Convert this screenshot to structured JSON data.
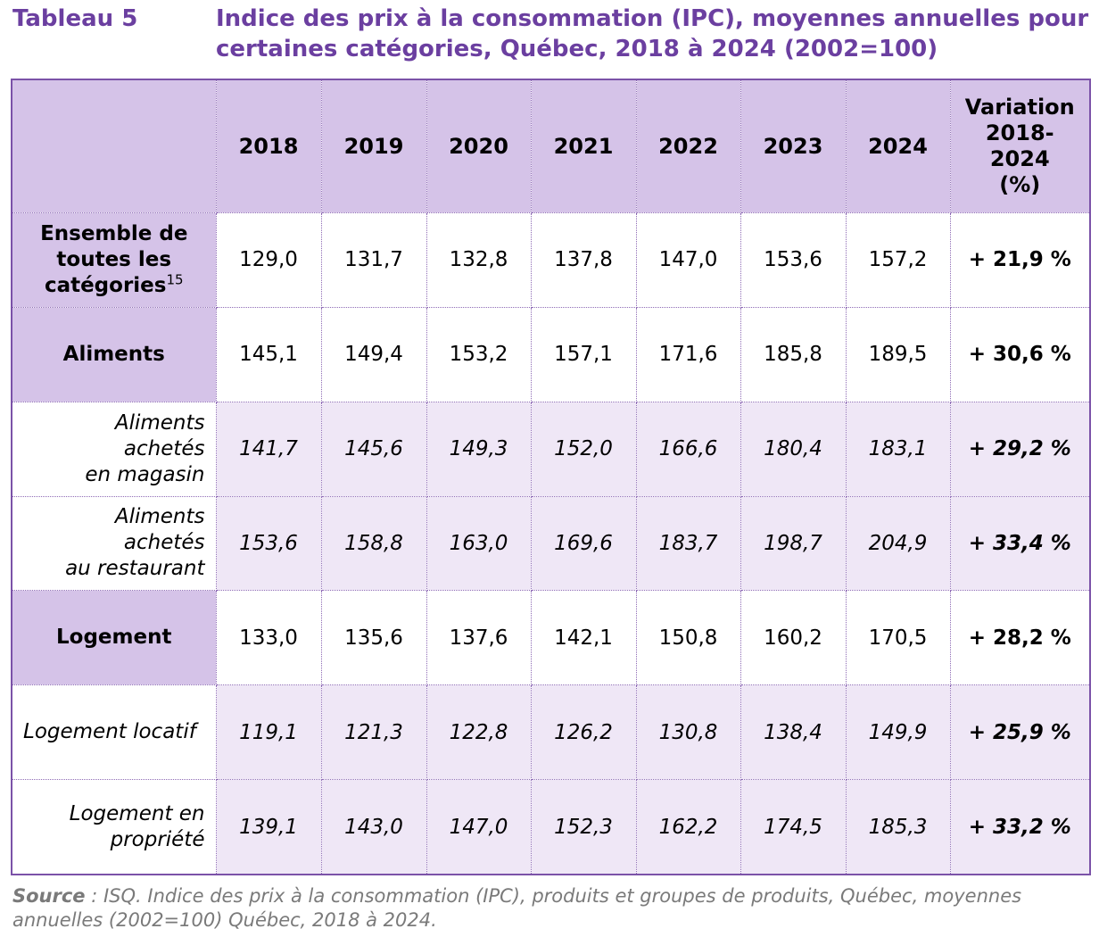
{
  "header": {
    "table_label": "Tableau 5",
    "title": "Indice des prix à la consommation (IPC), moyennes annuelles pour certaines catégories, Québec, 2018 à 2024 (2002=100)"
  },
  "table": {
    "columns": [
      "2018",
      "2019",
      "2020",
      "2021",
      "2022",
      "2023",
      "2024"
    ],
    "variation_header": [
      "Variation",
      "2018-",
      "2024",
      "(%)"
    ],
    "rows": [
      {
        "label_lines": [
          "Ensemble de",
          "toutes les",
          "catégories"
        ],
        "footnote": "15",
        "values": [
          "129,0",
          "131,7",
          "132,8",
          "137,8",
          "147,0",
          "153,6",
          "157,2"
        ],
        "variation": "+ 21,9 %"
      },
      {
        "label_lines": [
          "Aliments"
        ],
        "values": [
          "145,1",
          "149,4",
          "153,2",
          "157,1",
          "171,6",
          "185,8",
          "189,5"
        ],
        "variation": "+ 30,6 %"
      },
      {
        "label_lines": [
          "Aliments",
          "achetés",
          "en magasin"
        ],
        "values": [
          "141,7",
          "145,6",
          "149,3",
          "152,0",
          "166,6",
          "180,4",
          "183,1"
        ],
        "variation": "+ 29,2 %"
      },
      {
        "label_lines": [
          "Aliments",
          "achetés",
          "au restaurant"
        ],
        "values": [
          "153,6",
          "158,8",
          "163,0",
          "169,6",
          "183,7",
          "198,7",
          "204,9"
        ],
        "variation": "+ 33,4 %"
      },
      {
        "label_lines": [
          "Logement"
        ],
        "values": [
          "133,0",
          "135,6",
          "137,6",
          "142,1",
          "150,8",
          "160,2",
          "170,5"
        ],
        "variation": "+ 28,2 %"
      },
      {
        "label_lines": [
          "Logement locatif"
        ],
        "values": [
          "119,1",
          "121,3",
          "122,8",
          "126,2",
          "130,8",
          "138,4",
          "149,9"
        ],
        "variation": "+ 25,9 %"
      },
      {
        "label_lines": [
          "Logement en",
          "propriété"
        ],
        "values": [
          "139,1",
          "143,0",
          "147,0",
          "152,3",
          "162,2",
          "174,5",
          "185,3"
        ],
        "variation": "+ 33,2 %"
      }
    ]
  },
  "source": {
    "label": "Source",
    "text": " : ISQ. Indice des prix à la consommation (IPC), produits et groupes de produits, Québec, moyennes annuelles (2002=100) Québec, 2018 à 2024."
  },
  "colors": {
    "accent": "#6b3fa0",
    "header_fill": "#d5c3e8",
    "sub_row_fill": "#efe7f6"
  }
}
